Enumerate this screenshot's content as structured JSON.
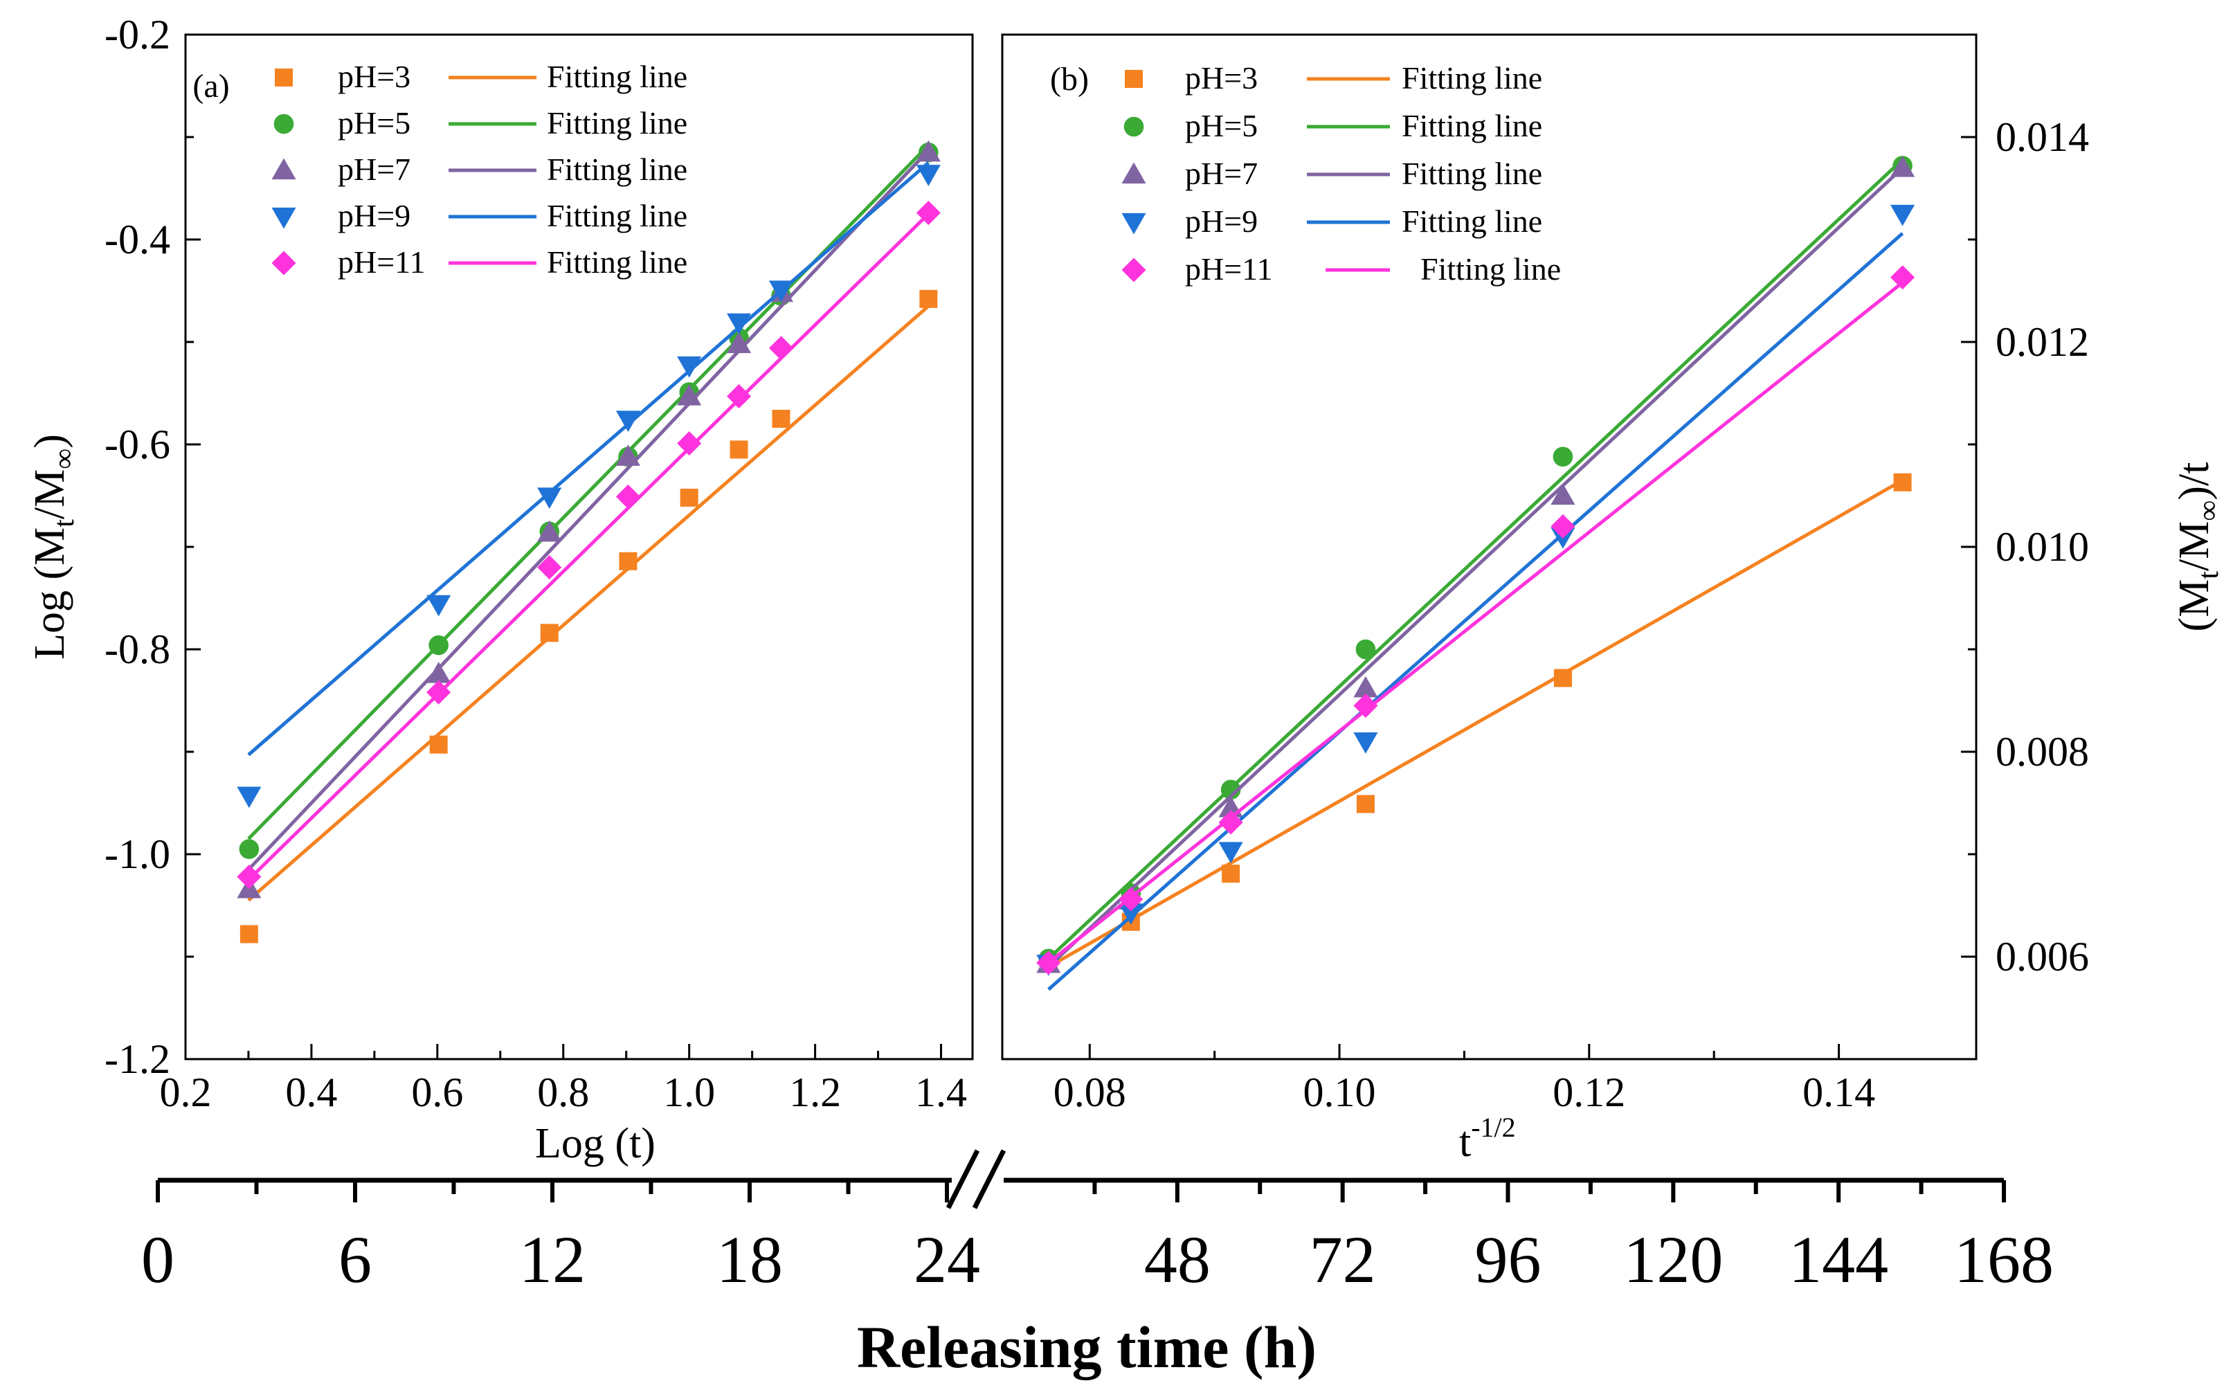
{
  "chart_data": [
    {
      "panel": "(a)",
      "type": "scatter",
      "xlabel": "Log (t)",
      "ylabel_main": "Log (M",
      "ylabel_sub": "t",
      "ylabel_mid": "/M",
      "ylabel_sub2": "∞",
      "ylabel_end": ")",
      "xlim": [
        0.2,
        1.45
      ],
      "ylim": [
        -1.2,
        -0.2
      ],
      "xticks": [
        0.2,
        0.4,
        0.6,
        0.8,
        1.0,
        1.2,
        1.4
      ],
      "xtick_labels": [
        "0.2",
        "0.4",
        "0.6",
        "0.8",
        "1.0",
        "1.2",
        "1.4"
      ],
      "yticks": [
        -1.2,
        -1.0,
        -0.8,
        -0.6,
        -0.4,
        -0.2
      ],
      "ytick_labels": [
        "-1.2",
        "-1.0",
        "-0.8",
        "-0.6",
        "-0.4",
        "-0.2"
      ],
      "legend_position": "top-left",
      "series": [
        {
          "name": "pH=3",
          "fit_label": "Fitting line",
          "color": "#f58220",
          "marker": "square",
          "x": [
            0.301,
            0.602,
            0.778,
            0.903,
            1.0,
            1.079,
            1.146,
            1.38
          ],
          "y": [
            -1.078,
            -0.893,
            -0.784,
            -0.714,
            -0.652,
            -0.605,
            -0.575,
            -0.458
          ],
          "fit": [
            [
              0.3,
              -1.045
            ],
            [
              1.38,
              -0.465
            ]
          ]
        },
        {
          "name": "pH=5",
          "fit_label": "Fitting line",
          "color": "#3aaa35",
          "marker": "circle",
          "x": [
            0.301,
            0.602,
            0.778,
            0.903,
            1.0,
            1.079,
            1.146,
            1.38
          ],
          "y": [
            -0.995,
            -0.796,
            -0.685,
            -0.612,
            -0.549,
            -0.496,
            -0.455,
            -0.315
          ],
          "fit": [
            [
              0.3,
              -0.985
            ],
            [
              1.38,
              -0.308
            ]
          ]
        },
        {
          "name": "pH=7",
          "fit_label": "Fitting line",
          "color": "#8064a2",
          "marker": "triangle-up",
          "x": [
            0.301,
            0.602,
            0.778,
            0.903,
            1.0,
            1.079,
            1.146,
            1.38
          ],
          "y": [
            -1.034,
            -0.824,
            -0.686,
            -0.612,
            -0.553,
            -0.502,
            -0.452,
            -0.315
          ],
          "fit": [
            [
              0.3,
              -1.015
            ],
            [
              1.38,
              -0.313
            ]
          ]
        },
        {
          "name": "pH=9",
          "fit_label": "Fitting line",
          "color": "#1f73d6",
          "marker": "triangle-down",
          "x": [
            0.301,
            0.602,
            0.778,
            0.903,
            1.0,
            1.079,
            1.146,
            1.38
          ],
          "y": [
            -0.943,
            -0.756,
            -0.651,
            -0.576,
            -0.523,
            -0.481,
            -0.449,
            -0.336
          ],
          "fit": [
            [
              0.3,
              -0.903
            ],
            [
              1.38,
              -0.325
            ]
          ]
        },
        {
          "name": "pH=11",
          "fit_label": "Fitting line",
          "color": "#ff33dd",
          "marker": "diamond",
          "x": [
            0.301,
            0.602,
            0.778,
            0.903,
            1.0,
            1.079,
            1.146,
            1.38
          ],
          "y": [
            -1.022,
            -0.842,
            -0.72,
            -0.651,
            -0.599,
            -0.553,
            -0.506,
            -0.374
          ],
          "fit": [
            [
              0.3,
              -1.025
            ],
            [
              1.38,
              -0.375
            ]
          ]
        }
      ]
    },
    {
      "panel": "(b)",
      "type": "scatter",
      "xlabel_main": "t",
      "xlabel_sup": "-1/2",
      "ylabel_main": "(M",
      "ylabel_sub": "t",
      "ylabel_mid": "/M",
      "ylabel_sub2": "∞",
      "ylabel_end": ")/t",
      "xlim": [
        0.073,
        0.151
      ],
      "ylim": [
        0.005,
        0.015
      ],
      "xticks": [
        0.08,
        0.1,
        0.12,
        0.14
      ],
      "xtick_labels": [
        "0.08",
        "0.10",
        "0.12",
        "0.14"
      ],
      "yticks": [
        0.006,
        0.008,
        0.01,
        0.012,
        0.014
      ],
      "ytick_labels": [
        "0.006",
        "0.008",
        "0.010",
        "0.012",
        "0.014"
      ],
      "legend_position": "top-left",
      "series": [
        {
          "name": "pH=3",
          "fit_label": "Fitting line",
          "color": "#f58220",
          "marker": "square",
          "x": [
            0.0767,
            0.0833,
            0.0913,
            0.1021,
            0.1179,
            0.1451
          ],
          "y": [
            0.00593,
            0.00634,
            0.00681,
            0.00749,
            0.00872,
            0.01063
          ],
          "fit": [
            [
              0.0767,
              0.0059
            ],
            [
              0.1451,
              0.01065
            ]
          ]
        },
        {
          "name": "pH=5",
          "fit_label": "Fitting line",
          "color": "#3aaa35",
          "marker": "circle",
          "x": [
            0.0767,
            0.0833,
            0.0913,
            0.1021,
            0.1179,
            0.1451
          ],
          "y": [
            0.00598,
            0.00662,
            0.00763,
            0.009,
            0.01088,
            0.01372
          ],
          "fit": [
            [
              0.0767,
              0.00598
            ],
            [
              0.1451,
              0.01378
            ]
          ]
        },
        {
          "name": "pH=7",
          "fit_label": "Fitting line",
          "color": "#8064a2",
          "marker": "triangle-up",
          "x": [
            0.0767,
            0.0833,
            0.0913,
            0.1021,
            0.1179,
            0.1451
          ],
          "y": [
            0.00593,
            0.00655,
            0.00745,
            0.00862,
            0.0105,
            0.0137
          ],
          "fit": [
            [
              0.0767,
              0.0059
            ],
            [
              0.1451,
              0.0137
            ]
          ]
        },
        {
          "name": "pH=9",
          "fit_label": "Fitting line",
          "color": "#1f73d6",
          "marker": "triangle-down",
          "x": [
            0.0767,
            0.0833,
            0.0913,
            0.1021,
            0.1179,
            0.1451
          ],
          "y": [
            0.00593,
            0.00643,
            0.00703,
            0.0081,
            0.0101,
            0.01325
          ],
          "fit": [
            [
              0.0767,
              0.00568
            ],
            [
              0.1451,
              0.01306
            ]
          ]
        },
        {
          "name": "pH=11",
          "fit_label": "Fitting line",
          "color": "#ff33dd",
          "marker": "diamond",
          "x": [
            0.0767,
            0.0833,
            0.0913,
            0.1021,
            0.1179,
            0.1451
          ],
          "y": [
            0.00594,
            0.00656,
            0.00731,
            0.00845,
            0.0102,
            0.01263
          ],
          "fit": [
            [
              0.0767,
              0.00594
            ],
            [
              0.1451,
              0.01258
            ]
          ]
        }
      ]
    },
    {
      "panel": "bottom-axis",
      "type": "axis",
      "title": "Releasing time (h)",
      "segment1_ticks": [
        0,
        6,
        12,
        18,
        24
      ],
      "segment1_labels": [
        "0",
        "6",
        "12",
        "18",
        "24"
      ],
      "segment2_ticks": [
        48,
        72,
        96,
        120,
        144,
        168
      ],
      "segment2_labels": [
        "48",
        "72",
        "96",
        "120",
        "144",
        "168"
      ],
      "segment2_range": [
        24,
        168
      ],
      "break_symbol": "//"
    }
  ]
}
